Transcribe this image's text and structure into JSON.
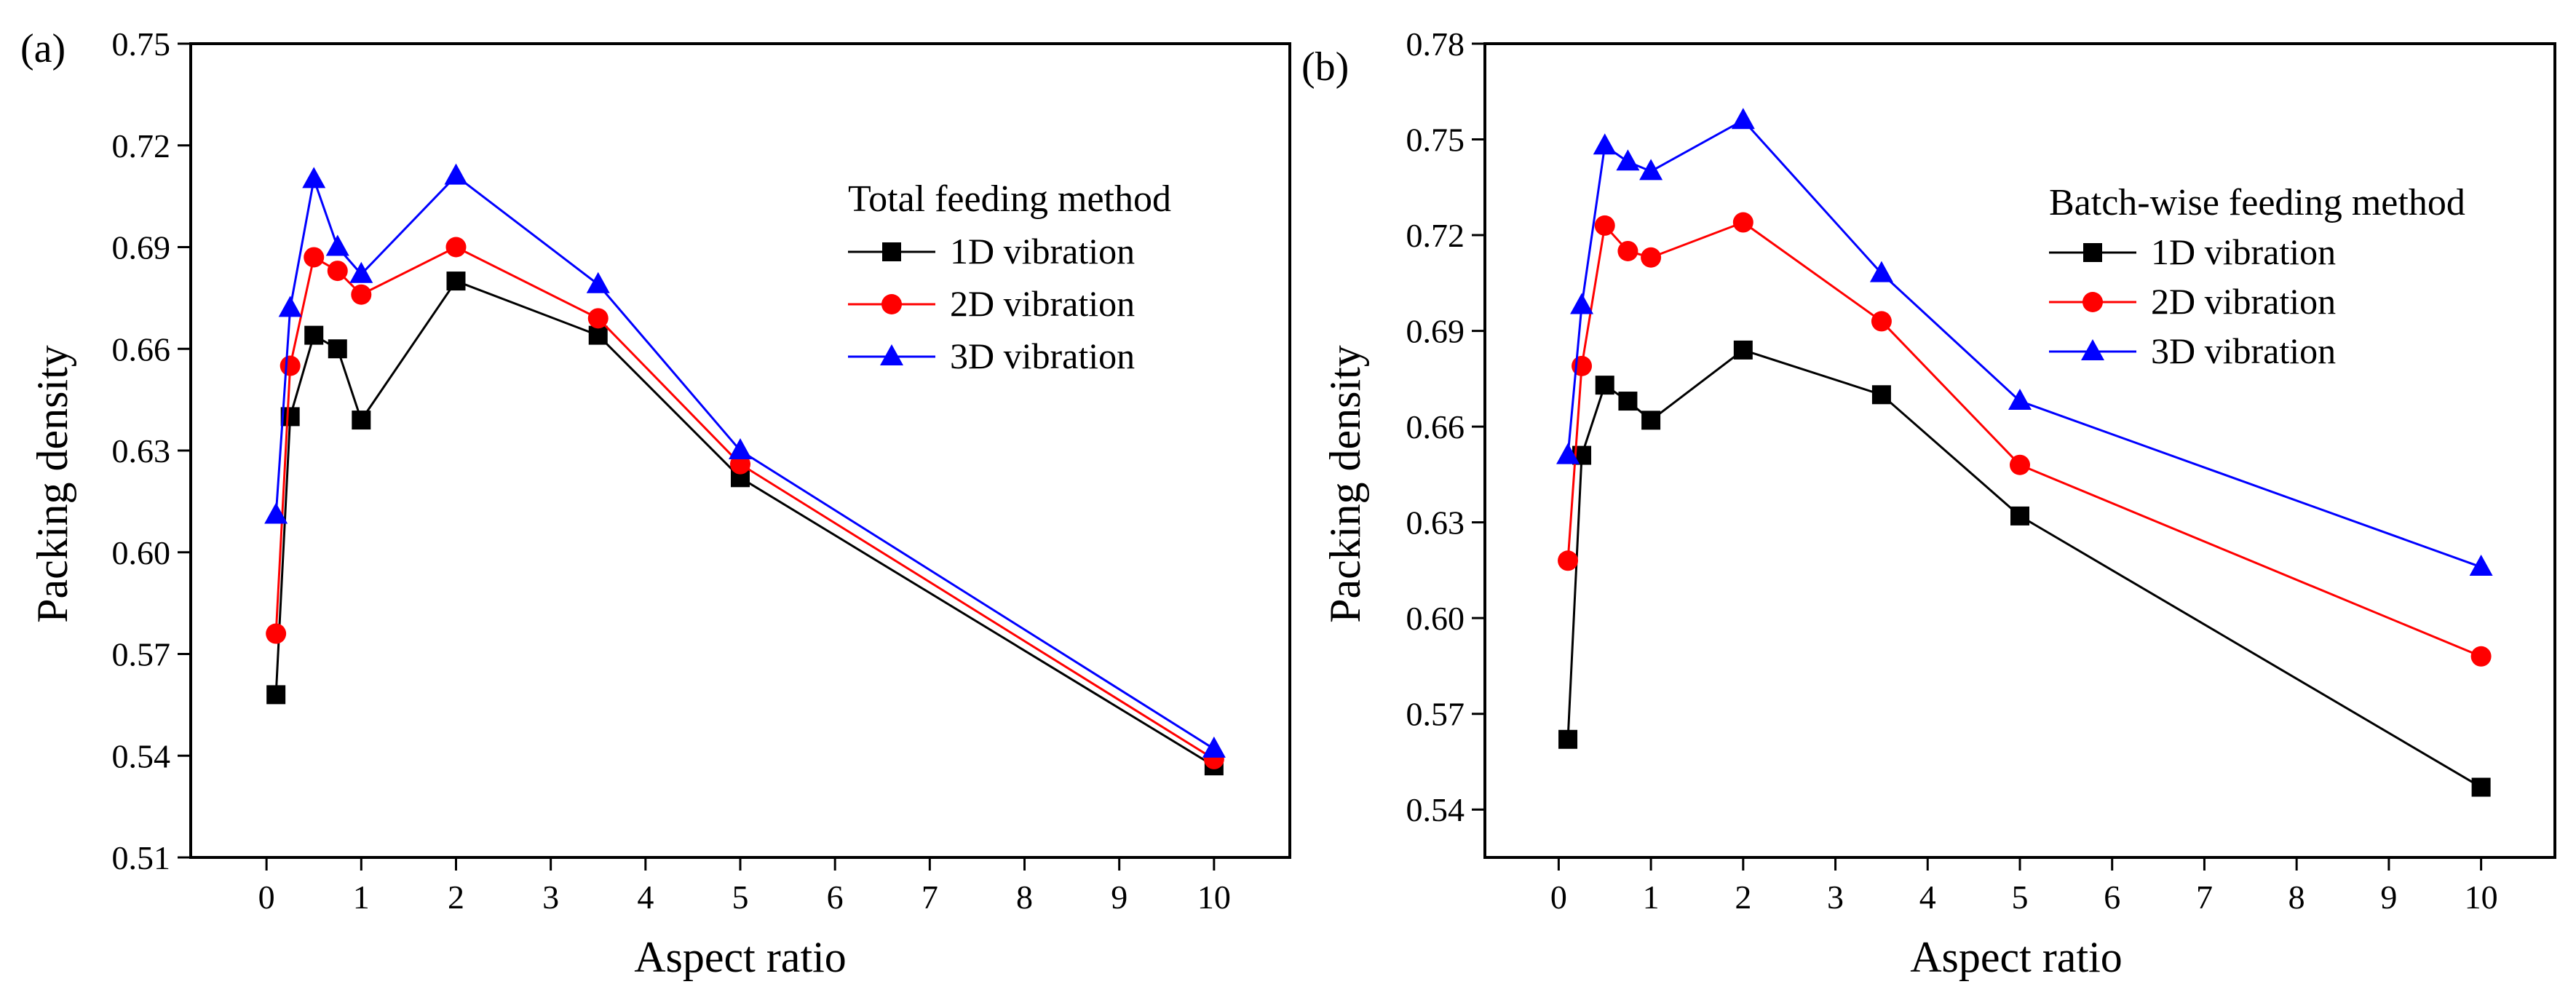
{
  "chart_data": [
    {
      "type": "line",
      "panel_label": "(a)",
      "xlabel": "Aspect ratio",
      "ylabel": "Packing density",
      "xlim": [
        -0.8,
        10.8
      ],
      "ylim": [
        0.51,
        0.75
      ],
      "xticks": [
        "0",
        "1",
        "2",
        "3",
        "4",
        "5",
        "6",
        "7",
        "8",
        "9",
        "10"
      ],
      "yticks": [
        "0.51",
        "0.54",
        "0.57",
        "0.60",
        "0.63",
        "0.66",
        "0.69",
        "0.72",
        "0.75"
      ],
      "legend_title": "Total feeding method",
      "legend_position": "top-right",
      "x": [
        0.1,
        0.25,
        0.5,
        0.75,
        1,
        2,
        3.5,
        5,
        10
      ],
      "series": [
        {
          "name": "1D vibration",
          "color": "#000000",
          "marker": "square",
          "values": [
            0.558,
            0.64,
            0.664,
            0.66,
            0.639,
            0.68,
            0.664,
            0.622,
            0.537
          ]
        },
        {
          "name": "2D vibration",
          "color": "#ff0000",
          "marker": "circle",
          "values": [
            0.576,
            0.655,
            0.687,
            0.683,
            0.676,
            0.69,
            0.669,
            0.626,
            0.539
          ]
        },
        {
          "name": "3D vibration",
          "color": "#0000ff",
          "marker": "triangle",
          "values": [
            0.611,
            0.672,
            0.71,
            0.69,
            0.682,
            0.711,
            0.679,
            0.63,
            0.542
          ]
        }
      ]
    },
    {
      "type": "line",
      "panel_label": "(b)",
      "xlabel": "Aspect ratio",
      "ylabel": "Packing density",
      "xlim": [
        -0.8,
        10.8
      ],
      "ylim": [
        0.525,
        0.78
      ],
      "xticks": [
        "0",
        "1",
        "2",
        "3",
        "4",
        "5",
        "6",
        "7",
        "8",
        "9",
        "10"
      ],
      "yticks": [
        "0.54",
        "0.57",
        "0.60",
        "0.63",
        "0.66",
        "0.69",
        "0.72",
        "0.75",
        "0.78"
      ],
      "legend_title": "Batch-wise feeding method",
      "legend_position": "top-right",
      "x": [
        0.1,
        0.25,
        0.5,
        0.75,
        1,
        2,
        3.5,
        5,
        10
      ],
      "series": [
        {
          "name": "1D vibration",
          "color": "#000000",
          "marker": "square",
          "values": [
            0.562,
            0.651,
            0.673,
            0.668,
            0.662,
            0.684,
            0.67,
            0.632,
            0.547
          ]
        },
        {
          "name": "2D vibration",
          "color": "#ff0000",
          "marker": "circle",
          "values": [
            0.618,
            0.679,
            0.723,
            0.715,
            0.713,
            0.724,
            0.693,
            0.648,
            0.588
          ]
        },
        {
          "name": "3D vibration",
          "color": "#0000ff",
          "marker": "triangle",
          "values": [
            0.651,
            0.698,
            0.748,
            0.743,
            0.74,
            0.756,
            0.708,
            0.668,
            0.616
          ]
        }
      ]
    }
  ]
}
